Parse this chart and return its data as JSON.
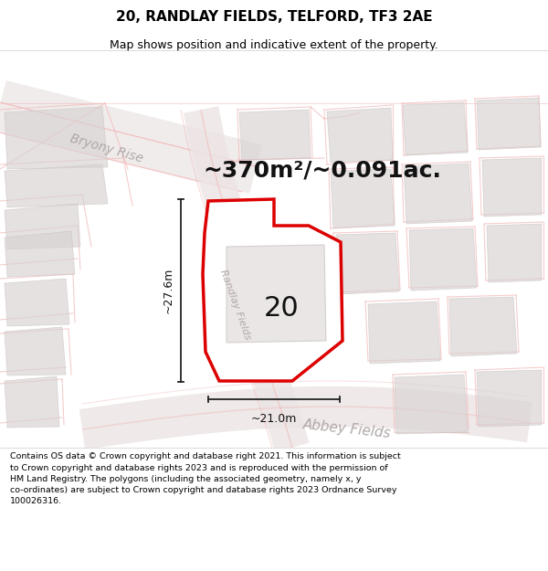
{
  "title_line1": "20, RANDLAY FIELDS, TELFORD, TF3 2AE",
  "title_line2": "Map shows position and indicative extent of the property.",
  "area_label": "~370m²/~0.091ac.",
  "label_number": "20",
  "dim_horizontal": "~21.0m",
  "dim_vertical": "~27.6m",
  "street_randlay": "Randlay Fields",
  "street_bryony": "Bryony Rise",
  "street_abbey": "Abbey Fields",
  "footer_text": "Contains OS data © Crown copyright and database right 2021. This information is subject\nto Crown copyright and database rights 2023 and is reproduced with the permission of\nHM Land Registry. The polygons (including the associated geometry, namely x, y\nco-ordinates) are subject to Crown copyright and database rights 2023 Ordnance Survey\n100026316.",
  "map_bg": "#faf7f7",
  "road_line_color": "#f0b8b8",
  "road_fill_color": "#f5e8e8",
  "building_fill": "#d8d2d2",
  "building_edge": "#c8c0c0",
  "plot_fill": "#ffffff",
  "plot_edge": "#dd0000",
  "house_fill": "#e2dcdc",
  "house_edge": "#c8c0c0",
  "dim_color": "#222222",
  "street_color": "#b0a8a8",
  "white": "#ffffff",
  "title_fontsize": 11,
  "subtitle_fontsize": 9,
  "area_fontsize": 18,
  "num_fontsize": 22,
  "dim_fontsize": 9,
  "street_fontsize_sm": 8,
  "street_fontsize_lg": 11,
  "footer_fontsize": 6.8,
  "plot_lw": 2.5,
  "dim_lw": 1.3
}
